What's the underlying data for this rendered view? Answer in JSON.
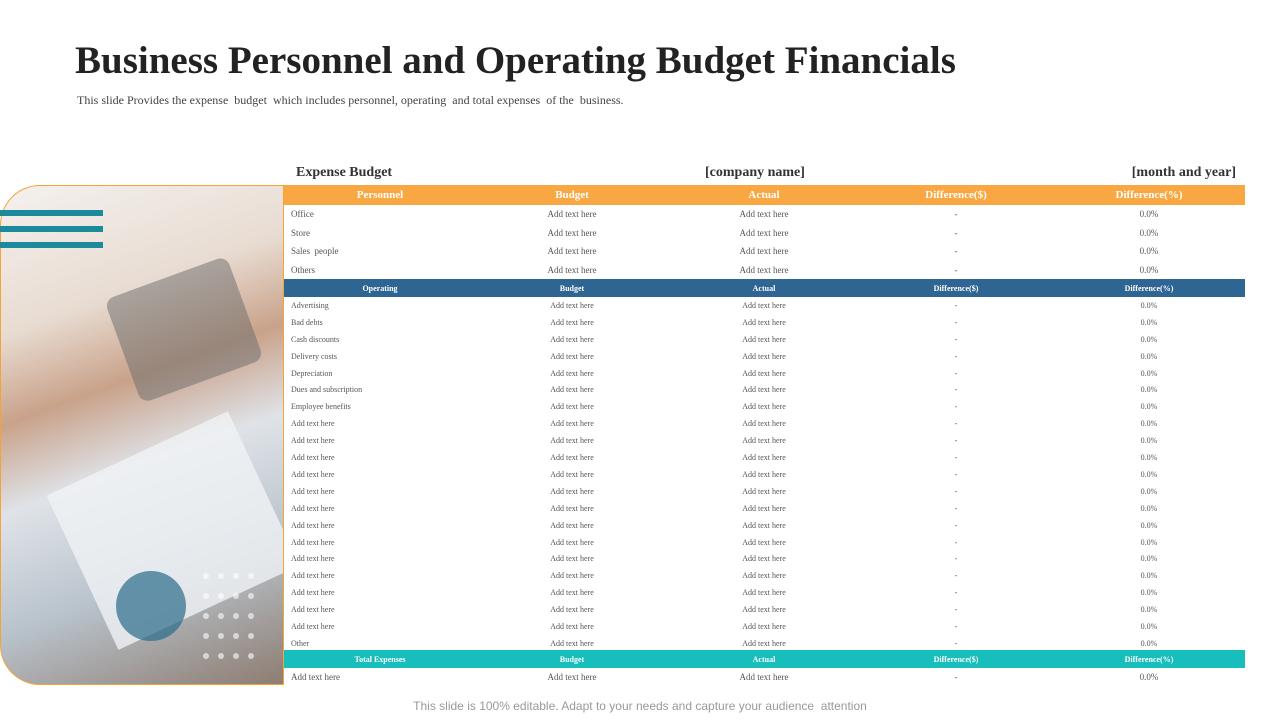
{
  "header": {
    "title": "Business Personnel and Operating Budget Financials",
    "subtitle": "This slide Provides the expense  budget  which includes personnel, operating  and total expenses  of the  business."
  },
  "table": {
    "caption": [
      "Expense Budget",
      "[company name]",
      "[month and year]"
    ],
    "sections": [
      {
        "columns": [
          "Personnel",
          "Budget",
          "Actual",
          "Difference($)",
          "Difference(%)"
        ],
        "rows": [
          [
            "Office",
            "Add text here",
            "Add text here",
            "-",
            "0.0%"
          ],
          [
            "Store",
            "Add text here",
            "Add text here",
            "-",
            "0.0%"
          ],
          [
            "Sales  people",
            "Add text here",
            "Add text here",
            "-",
            "0.0%"
          ],
          [
            "Others",
            "Add text here",
            "Add text here",
            "-",
            "0.0%"
          ]
        ]
      },
      {
        "columns": [
          "Operating",
          "Budget",
          "Actual",
          "Difference($)",
          "Difference(%)"
        ],
        "rows": [
          [
            "Advertising",
            "Add text here",
            "Add text here",
            "-",
            "0.0%"
          ],
          [
            "Bad debts",
            "Add text here",
            "Add text here",
            "-",
            "0.0%"
          ],
          [
            "Cash discounts",
            "Add text here",
            "Add text here",
            "-",
            "0.0%"
          ],
          [
            "Delivery costs",
            "Add text here",
            "Add text here",
            "-",
            "0.0%"
          ],
          [
            "Depreciation",
            "Add text here",
            "Add text here",
            "-",
            "0.0%"
          ],
          [
            "Dues and subscription",
            "Add text here",
            "Add text here",
            "-",
            "0.0%"
          ],
          [
            "Employee benefits",
            "Add text here",
            "Add text here",
            "-",
            "0.0%"
          ],
          [
            "Add text here",
            "Add text here",
            "Add text here",
            "-",
            "0.0%"
          ],
          [
            "Add text here",
            "Add text here",
            "Add text here",
            "-",
            "0.0%"
          ],
          [
            "Add text here",
            "Add text here",
            "Add text here",
            "-",
            "0.0%"
          ],
          [
            "Add text here",
            "Add text here",
            "Add text here",
            "-",
            "0.0%"
          ],
          [
            "Add text here",
            "Add text here",
            "Add text here",
            "-",
            "0.0%"
          ],
          [
            "Add text here",
            "Add text here",
            "Add text here",
            "-",
            "0.0%"
          ],
          [
            "Add text here",
            "Add text here",
            "Add text here",
            "-",
            "0.0%"
          ],
          [
            "Add text here",
            "Add text here",
            "Add text here",
            "-",
            "0.0%"
          ],
          [
            "Add text here",
            "Add text here",
            "Add text here",
            "-",
            "0.0%"
          ],
          [
            "Add text here",
            "Add text here",
            "Add text here",
            "-",
            "0.0%"
          ],
          [
            "Add text here",
            "Add text here",
            "Add text here",
            "-",
            "0.0%"
          ],
          [
            "Add text here",
            "Add text here",
            "Add text here",
            "-",
            "0.0%"
          ],
          [
            "Add text here",
            "Add text here",
            "Add text here",
            "-",
            "0.0%"
          ],
          [
            "Other",
            "Add text here",
            "Add text here",
            "-",
            "0.0%"
          ]
        ]
      },
      {
        "columns": [
          "Total Expenses",
          "Budget",
          "Actual",
          "Difference($)",
          "Difference(%)"
        ],
        "rows": [
          [
            "Add text here",
            "Add text here",
            "Add text here",
            "-",
            "0.0%"
          ]
        ]
      }
    ]
  },
  "footer": "This slide is 100% editable. Adapt to your needs and capture your audience  attention"
}
